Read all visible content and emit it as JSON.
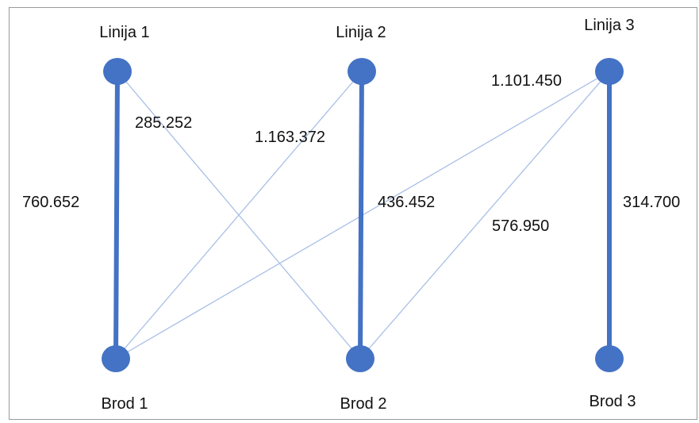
{
  "colors": {
    "node": "#4472c4",
    "thick_edge": "#4472c4",
    "thin_edge": "#a9bfe6",
    "text": "#111111"
  },
  "nodes": {
    "l1": "Linija 1",
    "l2": "Linija 2",
    "l3": "Linija 3",
    "b1": "Brod 1",
    "b2": "Brod 2",
    "b3": "Brod 3"
  },
  "edges": [
    {
      "from": "l1",
      "to": "b1",
      "weight": "760.652",
      "emphasis": "thick"
    },
    {
      "from": "l2",
      "to": "b2",
      "weight": "436.452",
      "emphasis": "thick"
    },
    {
      "from": "l3",
      "to": "b3",
      "weight": "314.700",
      "emphasis": "thick"
    },
    {
      "from": "l1",
      "to": "b2",
      "weight": "285.252",
      "emphasis": "thin"
    },
    {
      "from": "l2",
      "to": "b1",
      "weight": "1.163.372",
      "emphasis": "thin"
    },
    {
      "from": "l3",
      "to": "b1",
      "weight": "1.101.450",
      "emphasis": "thin"
    },
    {
      "from": "l3",
      "to": "b2",
      "weight": "576.950",
      "emphasis": "thin"
    }
  ]
}
